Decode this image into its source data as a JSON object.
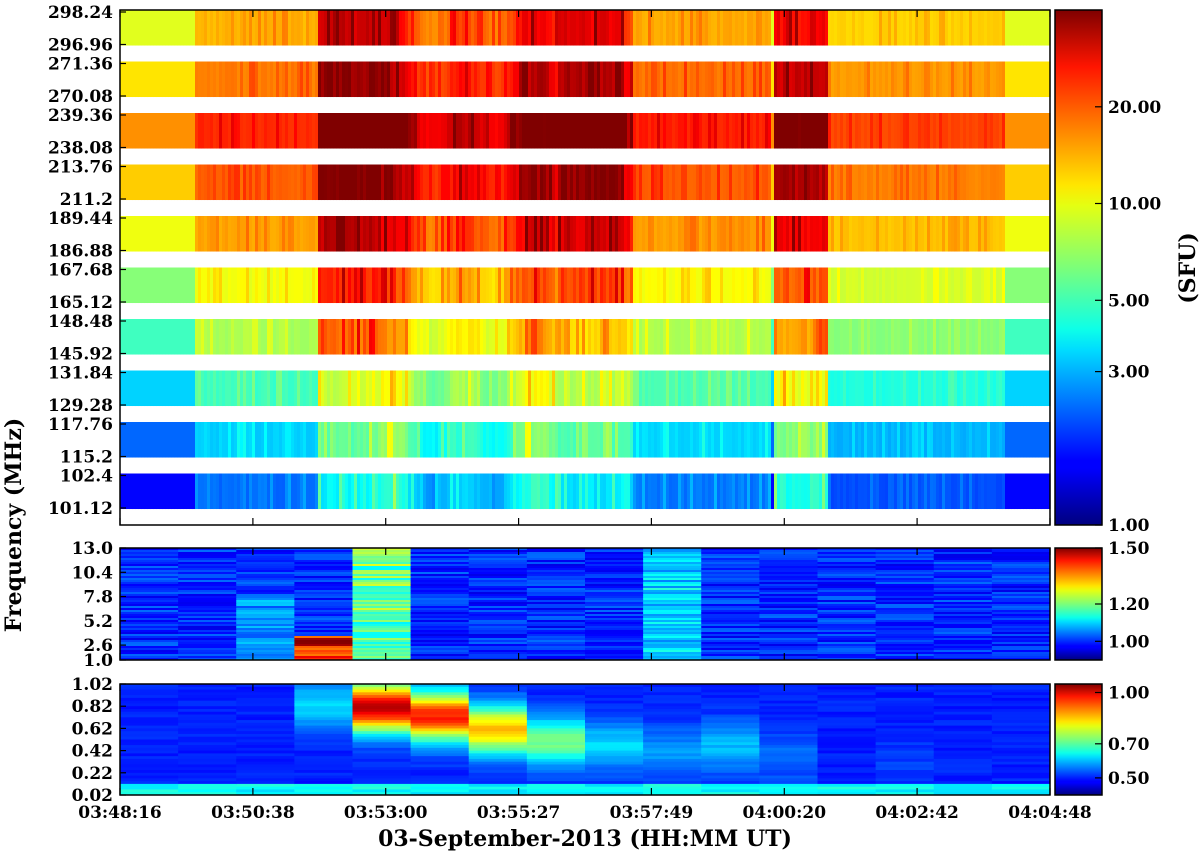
{
  "chart_data": {
    "type": "heatmap",
    "xlabel": "03-September-2013 (HH:MM UT)",
    "ylabel": "Frequency (MHz)",
    "x_ticks": [
      "03:48:16",
      "03:50:38",
      "03:53:00",
      "03:55:27",
      "03:57:49",
      "04:00:20",
      "04:02:42",
      "04:04:48"
    ],
    "panels": [
      {
        "name": "panel-top",
        "y_tick_labels": [
          "298.24",
          "296.96",
          "271.36",
          "270.08",
          "239.36",
          "238.08",
          "213.76",
          "211.2",
          "189.44",
          "186.88",
          "167.68",
          "165.12",
          "148.48",
          "145.92",
          "131.84",
          "129.28",
          "117.76",
          "115.2",
          "102.4",
          "101.12"
        ],
        "bands": [
          {
            "high": 298.24,
            "low": 296.96,
            "base_sfu": 9.0
          },
          {
            "high": 271.36,
            "low": 270.08,
            "base_sfu": 11.0
          },
          {
            "high": 239.36,
            "low": 238.08,
            "base_sfu": 15.0
          },
          {
            "high": 213.76,
            "low": 211.2,
            "base_sfu": 12.0
          },
          {
            "high": 189.44,
            "low": 186.88,
            "base_sfu": 9.5
          },
          {
            "high": 167.68,
            "low": 165.12,
            "base_sfu": 6.5
          },
          {
            "high": 148.48,
            "low": 145.92,
            "base_sfu": 5.0
          },
          {
            "high": 131.84,
            "low": 129.28,
            "base_sfu": 3.4
          },
          {
            "high": 117.76,
            "low": 115.2,
            "base_sfu": 2.3
          },
          {
            "high": 102.4,
            "low": 101.12,
            "base_sfu": 1.6
          }
        ],
        "colorbar": {
          "label": "(SFU)",
          "scale": "log",
          "range": [
            1.0,
            40.0
          ],
          "ticks": [
            "1.00",
            "3.00",
            "5.00",
            "10.00",
            "20.00"
          ],
          "tick_values": [
            1.0,
            3.0,
            5.0,
            10.0,
            20.0
          ]
        }
      },
      {
        "name": "panel-middle",
        "y_tick_labels": [
          "13.0",
          "10.4",
          "7.8",
          "5.2",
          "2.6",
          "1.0"
        ],
        "y_range": [
          1.0,
          13.0
        ],
        "colorbar": {
          "scale": "linear",
          "range": [
            0.9,
            1.5
          ],
          "ticks": [
            "1.00",
            "1.20",
            "1.50"
          ],
          "tick_values": [
            1.0,
            1.2,
            1.5
          ]
        }
      },
      {
        "name": "panel-bottom",
        "y_tick_labels": [
          "1.02",
          "0.82",
          "0.62",
          "0.42",
          "0.22",
          "0.02"
        ],
        "y_range": [
          0.02,
          1.02
        ],
        "colorbar": {
          "scale": "linear",
          "range": [
            0.4,
            1.05
          ],
          "ticks": [
            "0.50",
            "0.70",
            "1.00"
          ],
          "tick_values": [
            0.5,
            0.7,
            1.0
          ]
        }
      }
    ],
    "colormap": "jet"
  }
}
